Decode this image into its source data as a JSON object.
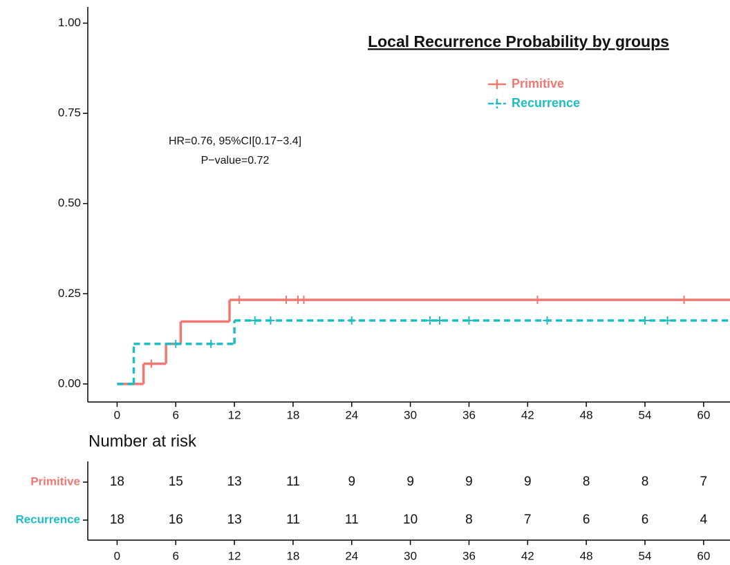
{
  "chart_data": {
    "type": "step",
    "title": "Local Recurrence Probability by groups",
    "annotations": [
      "HR=0.76, 95%CI[0.17−3.4]",
      "P−value=0.72"
    ],
    "xlim": [
      -3,
      62.7
    ],
    "ylim": [
      -0.05,
      1.045
    ],
    "xticks": [
      0,
      6,
      12,
      18,
      24,
      30,
      36,
      42,
      48,
      54,
      60
    ],
    "yticks": [
      {
        "value": 0,
        "label": "0.00"
      },
      {
        "value": 0.25,
        "label": "0.25"
      },
      {
        "value": 0.5,
        "label": "0.50"
      },
      {
        "value": 0.75,
        "label": "0.75"
      },
      {
        "value": 1,
        "label": "1.00"
      }
    ],
    "legend": "top-right",
    "series": [
      {
        "name": "Primitive",
        "color": "#F07870",
        "dashed": false,
        "time": [
          0,
          2.7,
          5,
          6.5,
          11.5,
          62.7
        ],
        "values": [
          0,
          0.056,
          0.111,
          0.173,
          0.233,
          0.233
        ],
        "censor_time": [
          3.5,
          12.5,
          17.3,
          18.5,
          19.1,
          43,
          58
        ],
        "censor_values": [
          0.056,
          0.233,
          0.233,
          0.233,
          0.233,
          0.233,
          0.233
        ]
      },
      {
        "name": "Recurrence",
        "color": "#1DBDC4",
        "dashed": true,
        "time": [
          0,
          1.7,
          12,
          62.7
        ],
        "values": [
          0,
          0.111,
          0.176,
          0.176
        ],
        "censor_time": [
          6,
          9.6,
          14.1,
          15.7,
          24,
          32,
          33,
          36,
          44,
          54,
          56.3
        ],
        "censor_values": [
          0.111,
          0.111,
          0.176,
          0.176,
          0.176,
          0.176,
          0.176,
          0.176,
          0.176,
          0.176,
          0.176
        ]
      }
    ],
    "risk_table": {
      "title": "Number at risk",
      "rows": [
        {
          "name": "Primitive",
          "color": "#F07870",
          "counts": [
            18,
            15,
            13,
            11,
            9,
            9,
            9,
            9,
            8,
            8,
            7
          ]
        },
        {
          "name": "Recurrence",
          "color": "#1DBDC4",
          "counts": [
            18,
            16,
            13,
            11,
            11,
            10,
            8,
            7,
            6,
            6,
            4
          ]
        }
      ]
    }
  }
}
